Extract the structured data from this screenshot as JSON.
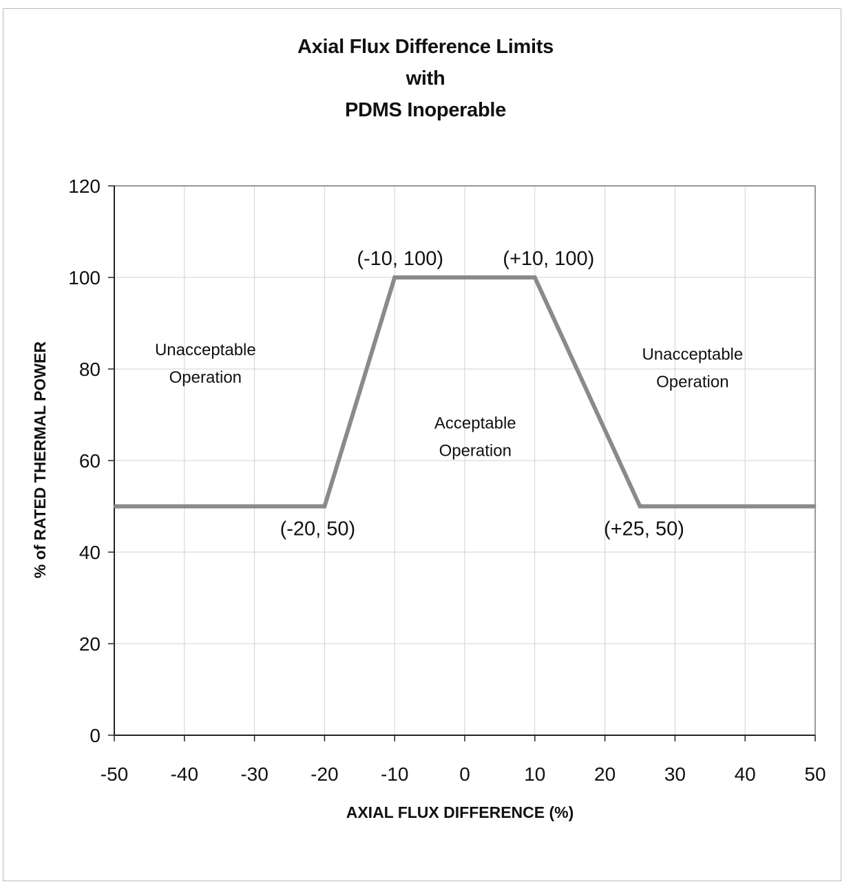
{
  "chart_data": {
    "type": "line",
    "title": [
      "Axial Flux Difference Limits",
      "with",
      "PDMS Inoperable"
    ],
    "xlabel": "AXIAL FLUX DIFFERENCE (%)",
    "ylabel": "% of RATED THERMAL POWER",
    "xlim": [
      -50,
      50
    ],
    "ylim": [
      0,
      120
    ],
    "xticks": [
      -50,
      -40,
      -30,
      -20,
      -10,
      0,
      10,
      20,
      30,
      40,
      50
    ],
    "yticks": [
      0,
      20,
      40,
      60,
      80,
      100,
      120
    ],
    "grid": true,
    "x": [
      -50,
      -20,
      -10,
      10,
      25,
      50
    ],
    "y": [
      50,
      50,
      100,
      100,
      50,
      50
    ],
    "line_color": "#8a8a8a",
    "point_labels": [
      {
        "text": "(-20, 50)",
        "x": -20,
        "y": 50
      },
      {
        "text": "(-10, 100)",
        "x": -10,
        "y": 100
      },
      {
        "text": "(+10, 100)",
        "x": 10,
        "y": 100
      },
      {
        "text": "(+25, 50)",
        "x": 25,
        "y": 50
      }
    ],
    "annotations": [
      {
        "lines": [
          "Unacceptable",
          "Operation"
        ],
        "x": -37,
        "y": 83
      },
      {
        "lines": [
          "Acceptable",
          "Operation"
        ],
        "x": 1.5,
        "y": 67
      },
      {
        "lines": [
          "Unacceptable",
          "Operation"
        ],
        "x": 32.5,
        "y": 82
      }
    ]
  }
}
